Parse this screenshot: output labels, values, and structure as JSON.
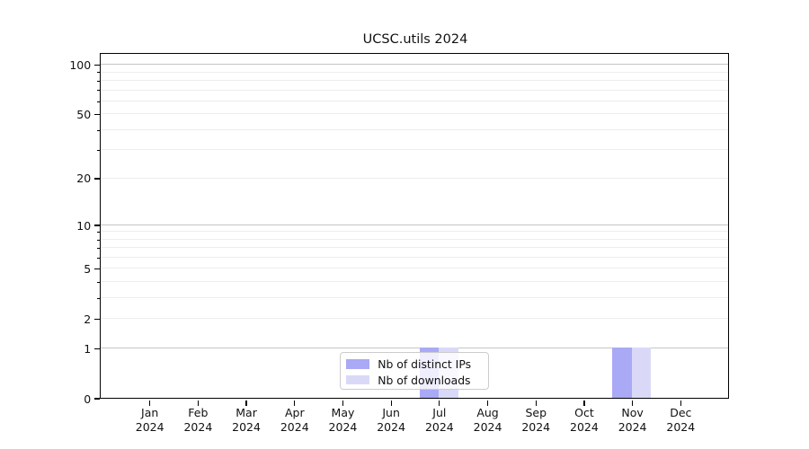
{
  "figure": {
    "title": "UCSC.utils 2024"
  },
  "chart_data": {
    "type": "bar",
    "title": "UCSC.utils 2024",
    "categories": [
      "Jan",
      "Feb",
      "Mar",
      "Apr",
      "May",
      "Jun",
      "Jul",
      "Aug",
      "Sep",
      "Oct",
      "Nov",
      "Dec"
    ],
    "category_year": "2024",
    "series": [
      {
        "name": "Nb of distinct IPs",
        "color": "#a9a9f5",
        "values": [
          0,
          0,
          0,
          0,
          0,
          0,
          1,
          0,
          0,
          0,
          1,
          0
        ]
      },
      {
        "name": "Nb of downloads",
        "color": "#d9d9f7",
        "values": [
          0,
          0,
          0,
          0,
          0,
          0,
          1,
          0,
          0,
          0,
          1,
          0
        ]
      }
    ],
    "scale": "log1p",
    "ylim": [
      0,
      115.6
    ],
    "y_tick_labels": [
      0,
      1,
      2,
      5,
      10,
      20,
      50,
      100
    ],
    "y_major_gridlines": [
      1,
      10,
      100
    ],
    "y_minor_gridlines": [
      2,
      3,
      4,
      5,
      6,
      7,
      8,
      9,
      20,
      30,
      40,
      50,
      60,
      70,
      80,
      90
    ],
    "y_minor_ticks": [
      3,
      4,
      6,
      7,
      8,
      9,
      30,
      40,
      60,
      70,
      80,
      90
    ],
    "grid": true,
    "legend_position": "lower center",
    "colors": {
      "major_grid": "#c5c5c5",
      "minor_grid": "#ededed",
      "spine": "#000000",
      "text": "#111111",
      "background": "#ffffff"
    }
  }
}
